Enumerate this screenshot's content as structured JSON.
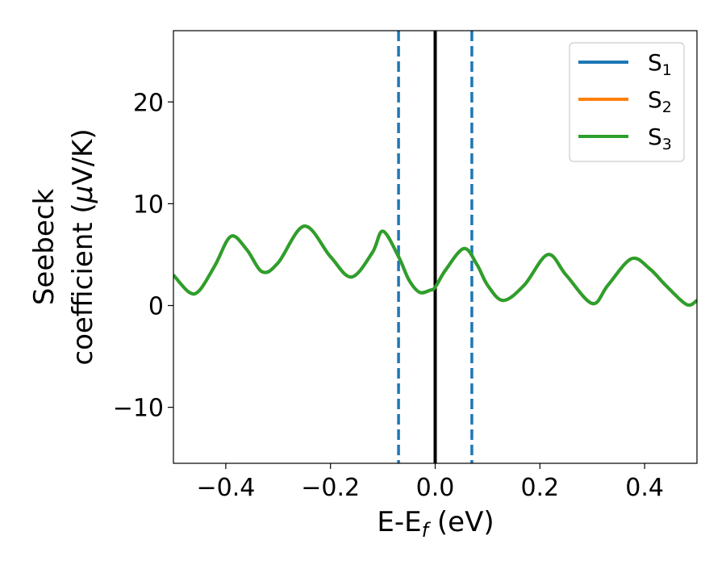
{
  "chart_data": {
    "type": "line",
    "xlabel_main": "E-E",
    "xlabel_sub": "f",
    "xlabel_tail": " (eV)",
    "ylabel_line1": "Seebeck",
    "ylabel_line2_prefix": "coefficient  (",
    "ylabel_line2_mu": "μ",
    "ylabel_line2_suffix": "V/K)",
    "xlim": [
      -0.5,
      0.5
    ],
    "ylim": [
      -15.5,
      27
    ],
    "xticks": [
      -0.4,
      -0.2,
      0.0,
      0.2,
      0.4
    ],
    "xtick_labels": [
      "−0.4",
      "−0.2",
      "0.0",
      "0.2",
      "0.4"
    ],
    "yticks": [
      -10,
      0,
      10,
      20
    ],
    "ytick_labels": [
      "−10",
      "0",
      "10",
      "20"
    ],
    "grid": false,
    "legend_position": "top-right",
    "reference_lines": [
      {
        "x": -0.07,
        "style": "dashed",
        "color": "#1f77b4"
      },
      {
        "x": 0.07,
        "style": "dashed",
        "color": "#1f77b4"
      },
      {
        "x": 0.0,
        "style": "dashed",
        "color": "#1f77b4"
      },
      {
        "x": 0.0,
        "style": "solid",
        "color": "#000000"
      }
    ],
    "series": [
      {
        "name_main": "S",
        "name_sub": "1",
        "color": "#1f77b4",
        "x": [
          -0.5,
          -0.47,
          -0.45,
          -0.42,
          -0.39,
          -0.36,
          -0.33,
          -0.3,
          -0.25,
          -0.2,
          -0.16,
          -0.12,
          -0.1,
          -0.07,
          -0.05,
          -0.03,
          -0.01,
          0.0,
          0.02,
          0.055,
          0.08,
          0.1,
          0.13,
          0.17,
          0.215,
          0.25,
          0.3,
          0.33,
          0.375,
          0.41,
          0.44,
          0.48,
          0.5
        ],
        "y": [
          3.0,
          1.3,
          1.5,
          4.0,
          6.8,
          5.5,
          3.3,
          4.2,
          7.8,
          4.8,
          2.8,
          5.2,
          7.3,
          4.8,
          2.5,
          1.3,
          1.5,
          1.8,
          3.5,
          5.6,
          4.0,
          2.0,
          0.5,
          2.0,
          5.0,
          3.0,
          0.2,
          2.0,
          4.6,
          3.6,
          2.0,
          0.1,
          0.5
        ]
      },
      {
        "name_main": "S",
        "name_sub": "2",
        "color": "#ff7f0e",
        "x": [
          -0.5,
          -0.47,
          -0.45,
          -0.42,
          -0.39,
          -0.36,
          -0.33,
          -0.3,
          -0.25,
          -0.2,
          -0.16,
          -0.12,
          -0.1,
          -0.07,
          -0.05,
          -0.03,
          -0.01,
          0.0,
          0.02,
          0.055,
          0.08,
          0.1,
          0.13,
          0.17,
          0.215,
          0.25,
          0.3,
          0.33,
          0.375,
          0.41,
          0.44,
          0.48,
          0.5
        ],
        "y": [
          3.0,
          1.3,
          1.5,
          4.0,
          6.8,
          5.5,
          3.3,
          4.2,
          7.8,
          4.8,
          2.8,
          5.2,
          7.3,
          4.8,
          2.5,
          1.3,
          1.5,
          1.8,
          3.5,
          5.6,
          4.0,
          2.0,
          0.5,
          2.0,
          5.0,
          3.0,
          0.2,
          2.0,
          4.6,
          3.6,
          2.0,
          0.1,
          0.5
        ]
      },
      {
        "name_main": "S",
        "name_sub": "3",
        "color": "#2ca02c",
        "x": [
          -0.5,
          -0.47,
          -0.45,
          -0.42,
          -0.39,
          -0.36,
          -0.33,
          -0.3,
          -0.25,
          -0.2,
          -0.16,
          -0.12,
          -0.1,
          -0.07,
          -0.05,
          -0.03,
          -0.01,
          0.0,
          0.02,
          0.055,
          0.08,
          0.1,
          0.13,
          0.17,
          0.215,
          0.25,
          0.3,
          0.33,
          0.375,
          0.41,
          0.44,
          0.48,
          0.5
        ],
        "y": [
          3.0,
          1.3,
          1.5,
          4.0,
          6.8,
          5.5,
          3.3,
          4.2,
          7.8,
          4.8,
          2.8,
          5.2,
          7.3,
          4.8,
          2.5,
          1.3,
          1.5,
          1.8,
          3.5,
          5.6,
          4.0,
          2.0,
          0.5,
          2.0,
          5.0,
          3.0,
          0.2,
          2.0,
          4.6,
          3.6,
          2.0,
          0.1,
          0.5
        ]
      }
    ]
  }
}
